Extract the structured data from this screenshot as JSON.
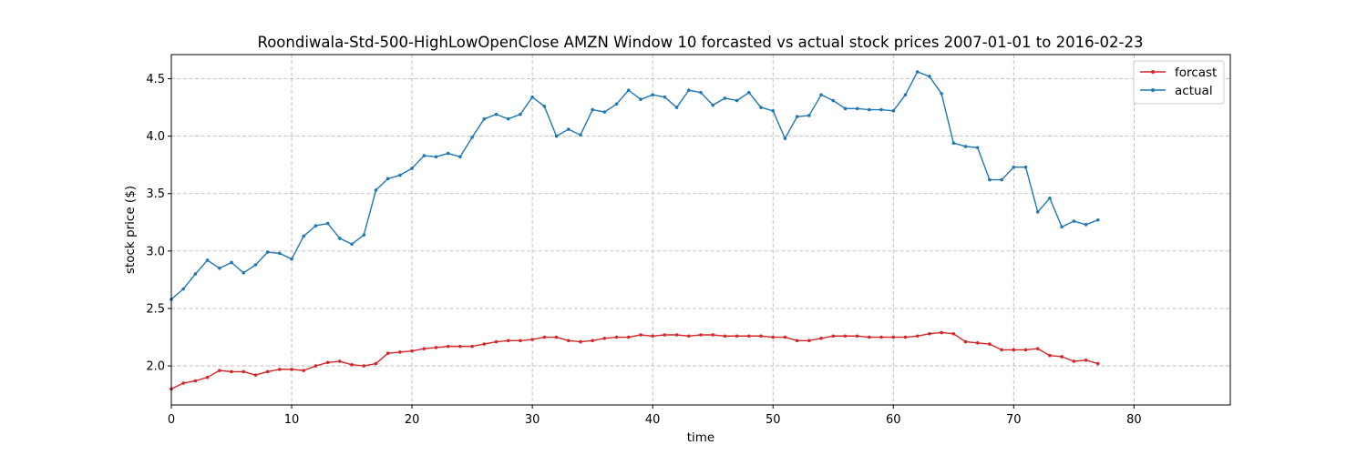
{
  "chart_data": {
    "type": "line",
    "title": "Roondiwala-Std-500-HighLowOpenClose AMZN Window 10 forcasted vs actual stock prices 2007-01-01 to 2016-02-23",
    "xlabel": "time",
    "ylabel": "stock price ($)",
    "xlim": [
      0,
      88
    ],
    "ylim": [
      1.66,
      4.71
    ],
    "xticks": [
      0,
      10,
      20,
      30,
      40,
      50,
      60,
      70,
      80
    ],
    "yticks": [
      2.0,
      2.5,
      3.0,
      3.5,
      4.0,
      4.5
    ],
    "xtick_labels": [
      "0",
      "10",
      "20",
      "30",
      "40",
      "50",
      "60",
      "70",
      "80"
    ],
    "ytick_labels": [
      "2.0",
      "2.5",
      "3.0",
      "3.5",
      "4.0",
      "4.5"
    ],
    "grid": true,
    "legend_position": "top-right",
    "series": [
      {
        "name": "forcast",
        "color": "#d62728",
        "values": [
          1.8,
          1.85,
          1.87,
          1.9,
          1.96,
          1.95,
          1.95,
          1.92,
          1.95,
          1.97,
          1.97,
          1.96,
          2.0,
          2.03,
          2.04,
          2.01,
          2.0,
          2.02,
          2.11,
          2.12,
          2.13,
          2.15,
          2.16,
          2.17,
          2.17,
          2.17,
          2.19,
          2.21,
          2.22,
          2.22,
          2.23,
          2.25,
          2.25,
          2.22,
          2.21,
          2.22,
          2.24,
          2.25,
          2.25,
          2.27,
          2.26,
          2.27,
          2.27,
          2.26,
          2.27,
          2.27,
          2.26,
          2.26,
          2.26,
          2.26,
          2.25,
          2.25,
          2.22,
          2.22,
          2.24,
          2.26,
          2.26,
          2.26,
          2.25,
          2.25,
          2.25,
          2.25,
          2.26,
          2.28,
          2.29,
          2.28,
          2.21,
          2.2,
          2.19,
          2.14,
          2.14,
          2.14,
          2.15,
          2.09,
          2.08,
          2.04,
          2.05,
          2.02
        ]
      },
      {
        "name": "actual",
        "color": "#1f77b4",
        "values": [
          2.58,
          2.67,
          2.8,
          2.92,
          2.85,
          2.9,
          2.81,
          2.88,
          2.99,
          2.98,
          2.93,
          3.13,
          3.22,
          3.24,
          3.11,
          3.06,
          3.14,
          3.53,
          3.63,
          3.66,
          3.72,
          3.83,
          3.82,
          3.85,
          3.82,
          3.99,
          4.15,
          4.19,
          4.15,
          4.19,
          4.34,
          4.26,
          4.0,
          4.06,
          4.01,
          4.23,
          4.21,
          4.28,
          4.4,
          4.32,
          4.36,
          4.34,
          4.25,
          4.4,
          4.38,
          4.27,
          4.33,
          4.31,
          4.38,
          4.25,
          4.22,
          3.98,
          4.17,
          4.18,
          4.36,
          4.31,
          4.24,
          4.24,
          4.23,
          4.23,
          4.22,
          4.36,
          4.56,
          4.52,
          4.37,
          3.94,
          3.91,
          3.9,
          3.62,
          3.62,
          3.73,
          3.73,
          3.34,
          3.46,
          3.21,
          3.26,
          3.23,
          3.27
        ]
      }
    ]
  }
}
